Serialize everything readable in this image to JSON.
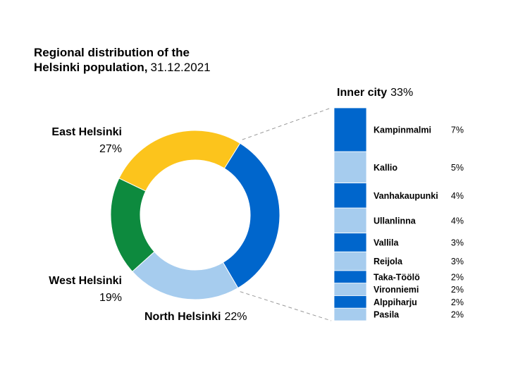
{
  "chart_data": {
    "type": "pie",
    "title": "Regional distribution of the",
    "title_line2": "Helsinki population,",
    "title_date": "31.12.2021",
    "donut": [
      {
        "name": "Inner city",
        "label": "Inner city",
        "pct_label": "33%",
        "value": 33,
        "color": "#0066cc"
      },
      {
        "name": "North Helsinki",
        "label": "North Helsinki",
        "pct_label": "22%",
        "value": 22,
        "color": "#a6ccee"
      },
      {
        "name": "West Helsinki",
        "label": "West Helsinki",
        "pct_label": "19%",
        "value": 19,
        "color": "#0d8a3e"
      },
      {
        "name": "East Helsinki",
        "label": "East Helsinki",
        "pct_label": "27%",
        "value": 27,
        "color": "#fcc41c"
      }
    ],
    "breakdown": {
      "label": "Inner city",
      "pct_label": "33%",
      "items": [
        {
          "name": "Kampinmalmi",
          "pct_label": "7%",
          "value": 7,
          "color": "#0066cc"
        },
        {
          "name": "Kallio",
          "pct_label": "5%",
          "value": 5,
          "color": "#a6ccee"
        },
        {
          "name": "Vanhakaupunki",
          "pct_label": "4%",
          "value": 4,
          "color": "#0066cc"
        },
        {
          "name": "Ullanlinna",
          "pct_label": "4%",
          "value": 4,
          "color": "#a6ccee"
        },
        {
          "name": "Vallila",
          "pct_label": "3%",
          "value": 3,
          "color": "#0066cc"
        },
        {
          "name": "Reijola",
          "pct_label": "3%",
          "value": 3,
          "color": "#a6ccee"
        },
        {
          "name": "Taka-Töölö",
          "pct_label": "2%",
          "value": 2,
          "color": "#0066cc"
        },
        {
          "name": "Vironniemi",
          "pct_label": "2%",
          "value": 2,
          "color": "#a6ccee"
        },
        {
          "name": "Alppiharju",
          "pct_label": "2%",
          "value": 2,
          "color": "#0066cc"
        },
        {
          "name": "Pasila",
          "pct_label": "2%",
          "value": 2,
          "color": "#a6ccee"
        }
      ]
    }
  }
}
